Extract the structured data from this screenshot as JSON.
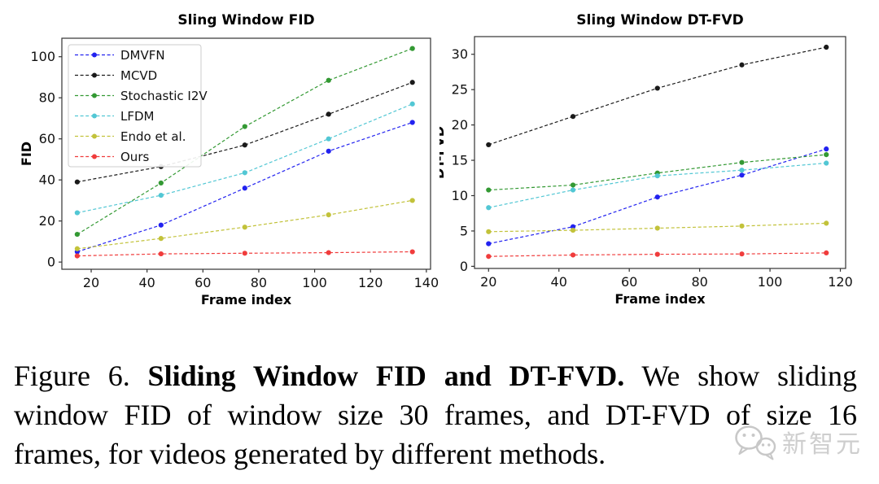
{
  "figure": {
    "caption": {
      "line1_prefix": "Figure 6. ",
      "line1_bold": "Sliding Window FID and DT-FVD.",
      "line1_rest": " We show sliding",
      "line2": "window FID of window size 30 frames, and DT-FVD of size 16",
      "line3": "frames, for videos generated by different methods."
    }
  },
  "watermark": {
    "icon": "wechat-bubbles-icon",
    "text": "新智元",
    "color": "#c9c9c9"
  },
  "chart_data": [
    {
      "type": "line",
      "title": "Sling Window FID",
      "xlabel": "Frame index",
      "ylabel": "FID",
      "x": [
        15,
        45,
        75,
        105,
        135
      ],
      "series": [
        {
          "name": "DMVFN",
          "color": "#2222f0",
          "values": [
            5,
            18,
            36,
            54,
            68
          ]
        },
        {
          "name": "MCVD",
          "color": "#1a1a1a",
          "values": [
            39,
            46.5,
            57,
            72,
            87.5
          ]
        },
        {
          "name": "Stochastic I2V",
          "color": "#339933",
          "values": [
            13.5,
            38.5,
            66,
            88.5,
            104
          ]
        },
        {
          "name": "LFDM",
          "color": "#52c7d4",
          "values": [
            24,
            32.5,
            43.5,
            60,
            77
          ]
        },
        {
          "name": "Endo et al.",
          "color": "#c2c23a",
          "values": [
            6.5,
            11.5,
            17,
            23,
            30
          ]
        },
        {
          "name": "Ours",
          "color": "#f03c3c",
          "values": [
            3,
            4,
            4.3,
            4.6,
            5
          ]
        }
      ],
      "xticks": [
        20,
        40,
        60,
        80,
        100,
        120,
        140
      ],
      "yticks": [
        0,
        20,
        40,
        60,
        80,
        100
      ],
      "xlim": [
        9.5,
        141.5
      ],
      "ylim": [
        -3.5,
        109
      ],
      "grid": false,
      "legend": true,
      "legend_position": "upper left",
      "linestyle": "dashed",
      "marker": "circle"
    },
    {
      "type": "line",
      "title": "Sling Window DT-FVD",
      "xlabel": "Frame index",
      "ylabel": "DT-FVD",
      "x": [
        20,
        44,
        68,
        92,
        116
      ],
      "series": [
        {
          "name": "DMVFN",
          "color": "#2222f0",
          "values": [
            3.2,
            5.6,
            9.8,
            12.9,
            16.6
          ]
        },
        {
          "name": "MCVD",
          "color": "#1a1a1a",
          "values": [
            17.2,
            21.2,
            25.2,
            28.5,
            31
          ]
        },
        {
          "name": "Stochastic I2V",
          "color": "#339933",
          "values": [
            10.8,
            11.5,
            13.2,
            14.7,
            15.8
          ]
        },
        {
          "name": "LFDM",
          "color": "#52c7d4",
          "values": [
            8.3,
            10.8,
            12.8,
            13.6,
            14.6
          ]
        },
        {
          "name": "Endo et al.",
          "color": "#c2c23a",
          "values": [
            4.9,
            5.1,
            5.4,
            5.7,
            6.1
          ]
        },
        {
          "name": "Ours",
          "color": "#f03c3c",
          "values": [
            1.4,
            1.6,
            1.7,
            1.75,
            1.9
          ]
        }
      ],
      "xticks": [
        20,
        40,
        60,
        80,
        100,
        120
      ],
      "yticks": [
        0,
        5,
        10,
        15,
        20,
        25,
        30
      ],
      "xlim": [
        16,
        121.5
      ],
      "ylim": [
        -0.3,
        32.5
      ],
      "grid": false,
      "legend": false,
      "linestyle": "dashed",
      "marker": "circle"
    }
  ]
}
